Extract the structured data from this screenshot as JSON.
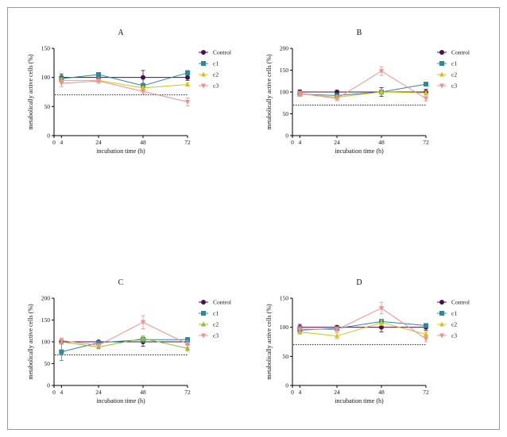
{
  "chart_data": [
    {
      "type": "line",
      "title": "A",
      "xlabel": "incubation time (h)",
      "ylabel": "metabolically active cells (%)",
      "x": [
        4,
        24,
        48,
        72
      ],
      "xticks": [
        "0",
        "4",
        "24",
        "48",
        "72"
      ],
      "xlim": [
        0,
        72
      ],
      "ylim": [
        0,
        150
      ],
      "yticks": [
        "0",
        "50",
        "100",
        "150"
      ],
      "reference_line": 70,
      "series": [
        {
          "name": "Control",
          "color": "#4b0f4b",
          "marker": "circle",
          "values": [
            100,
            100,
            100,
            100
          ],
          "errors": [
            6,
            4,
            12,
            5
          ]
        },
        {
          "name": "c1",
          "color": "#2a8a9a",
          "marker": "square",
          "values": [
            98,
            105,
            86,
            108
          ],
          "errors": [
            5,
            3,
            4,
            4
          ]
        },
        {
          "name": "c2",
          "color": "#d4c41a",
          "marker": "triangle",
          "values": [
            95,
            95,
            82,
            88
          ],
          "errors": [
            4,
            5,
            3,
            3
          ]
        },
        {
          "name": "c3",
          "color": "#f08f8f",
          "marker": "triangle-down",
          "values": [
            90,
            94,
            76,
            58
          ],
          "errors": [
            6,
            4,
            4,
            7
          ]
        }
      ]
    },
    {
      "type": "line",
      "title": "B",
      "xlabel": "incubation time (h)",
      "ylabel": "metabolically active cells (%)",
      "x": [
        4,
        24,
        48,
        72
      ],
      "xticks": [
        "0",
        "4",
        "24",
        "48",
        "72"
      ],
      "xlim": [
        0,
        72
      ],
      "ylim": [
        0,
        200
      ],
      "yticks": [
        "0",
        "50",
        "100",
        "150",
        "200"
      ],
      "reference_line": 70,
      "series": [
        {
          "name": "Control",
          "color": "#4b0f4b",
          "marker": "circle",
          "values": [
            100,
            100,
            100,
            100
          ],
          "errors": [
            5,
            4,
            10,
            6
          ]
        },
        {
          "name": "c1",
          "color": "#2a8a9a",
          "marker": "square",
          "values": [
            95,
            92,
            100,
            118
          ],
          "errors": [
            4,
            4,
            4,
            3
          ]
        },
        {
          "name": "c2",
          "color": "#d4c41a",
          "marker": "triangle",
          "values": [
            95,
            88,
            100,
            98
          ],
          "errors": [
            4,
            4,
            4,
            4
          ]
        },
        {
          "name": "c3",
          "color": "#f08f8f",
          "marker": "triangle-down",
          "values": [
            97,
            85,
            148,
            85
          ],
          "errors": [
            5,
            4,
            10,
            6
          ]
        }
      ]
    },
    {
      "type": "line",
      "title": "C",
      "xlabel": "incubation time (h)",
      "ylabel": "metabolically active cells (%)",
      "x": [
        4,
        24,
        48,
        72
      ],
      "xticks": [
        "0",
        "4",
        "24",
        "48",
        "72"
      ],
      "xlim": [
        0,
        72
      ],
      "ylim": [
        0,
        200
      ],
      "yticks": [
        "0",
        "50",
        "100",
        "150",
        "200"
      ],
      "reference_line": 70,
      "series": [
        {
          "name": "Control",
          "color": "#4b0f4b",
          "marker": "circle",
          "values": [
            100,
            100,
            100,
            100
          ],
          "errors": [
            5,
            3,
            10,
            6
          ]
        },
        {
          "name": "c1",
          "color": "#2a8a9a",
          "marker": "square",
          "values": [
            77,
            98,
            105,
            105
          ],
          "errors": [
            20,
            4,
            6,
            5
          ]
        },
        {
          "name": "c2",
          "color": "#8fbf2a",
          "marker": "triangle",
          "values": [
            100,
            88,
            108,
            85
          ],
          "errors": [
            5,
            4,
            6,
            6
          ]
        },
        {
          "name": "c3",
          "color": "#f08f8f",
          "marker": "triangle-down",
          "values": [
            103,
            92,
            145,
            95
          ],
          "errors": [
            6,
            4,
            15,
            8
          ]
        }
      ]
    },
    {
      "type": "line",
      "title": "D",
      "xlabel": "incubation time (h)",
      "ylabel": "metabolically active cells (%)",
      "x": [
        4,
        24,
        48,
        72
      ],
      "xticks": [
        "0",
        "4",
        "24",
        "48",
        "72"
      ],
      "xlim": [
        0,
        72
      ],
      "ylim": [
        0,
        150
      ],
      "yticks": [
        "0",
        "50",
        "100",
        "150"
      ],
      "reference_line": 70,
      "series": [
        {
          "name": "Control",
          "color": "#4b0f4b",
          "marker": "circle",
          "values": [
            100,
            100,
            100,
            100
          ],
          "errors": [
            5,
            3,
            8,
            5
          ]
        },
        {
          "name": "c1",
          "color": "#2a8a9a",
          "marker": "square",
          "values": [
            95,
            98,
            110,
            103
          ],
          "errors": [
            4,
            3,
            4,
            3
          ]
        },
        {
          "name": "c2",
          "color": "#d4c41a",
          "marker": "triangle",
          "values": [
            92,
            85,
            108,
            88
          ],
          "errors": [
            4,
            5,
            5,
            4
          ]
        },
        {
          "name": "c3",
          "color": "#f08f8f",
          "marker": "triangle-down",
          "values": [
            97,
            96,
            133,
            80
          ],
          "errors": [
            5,
            4,
            10,
            5
          ]
        }
      ]
    }
  ]
}
